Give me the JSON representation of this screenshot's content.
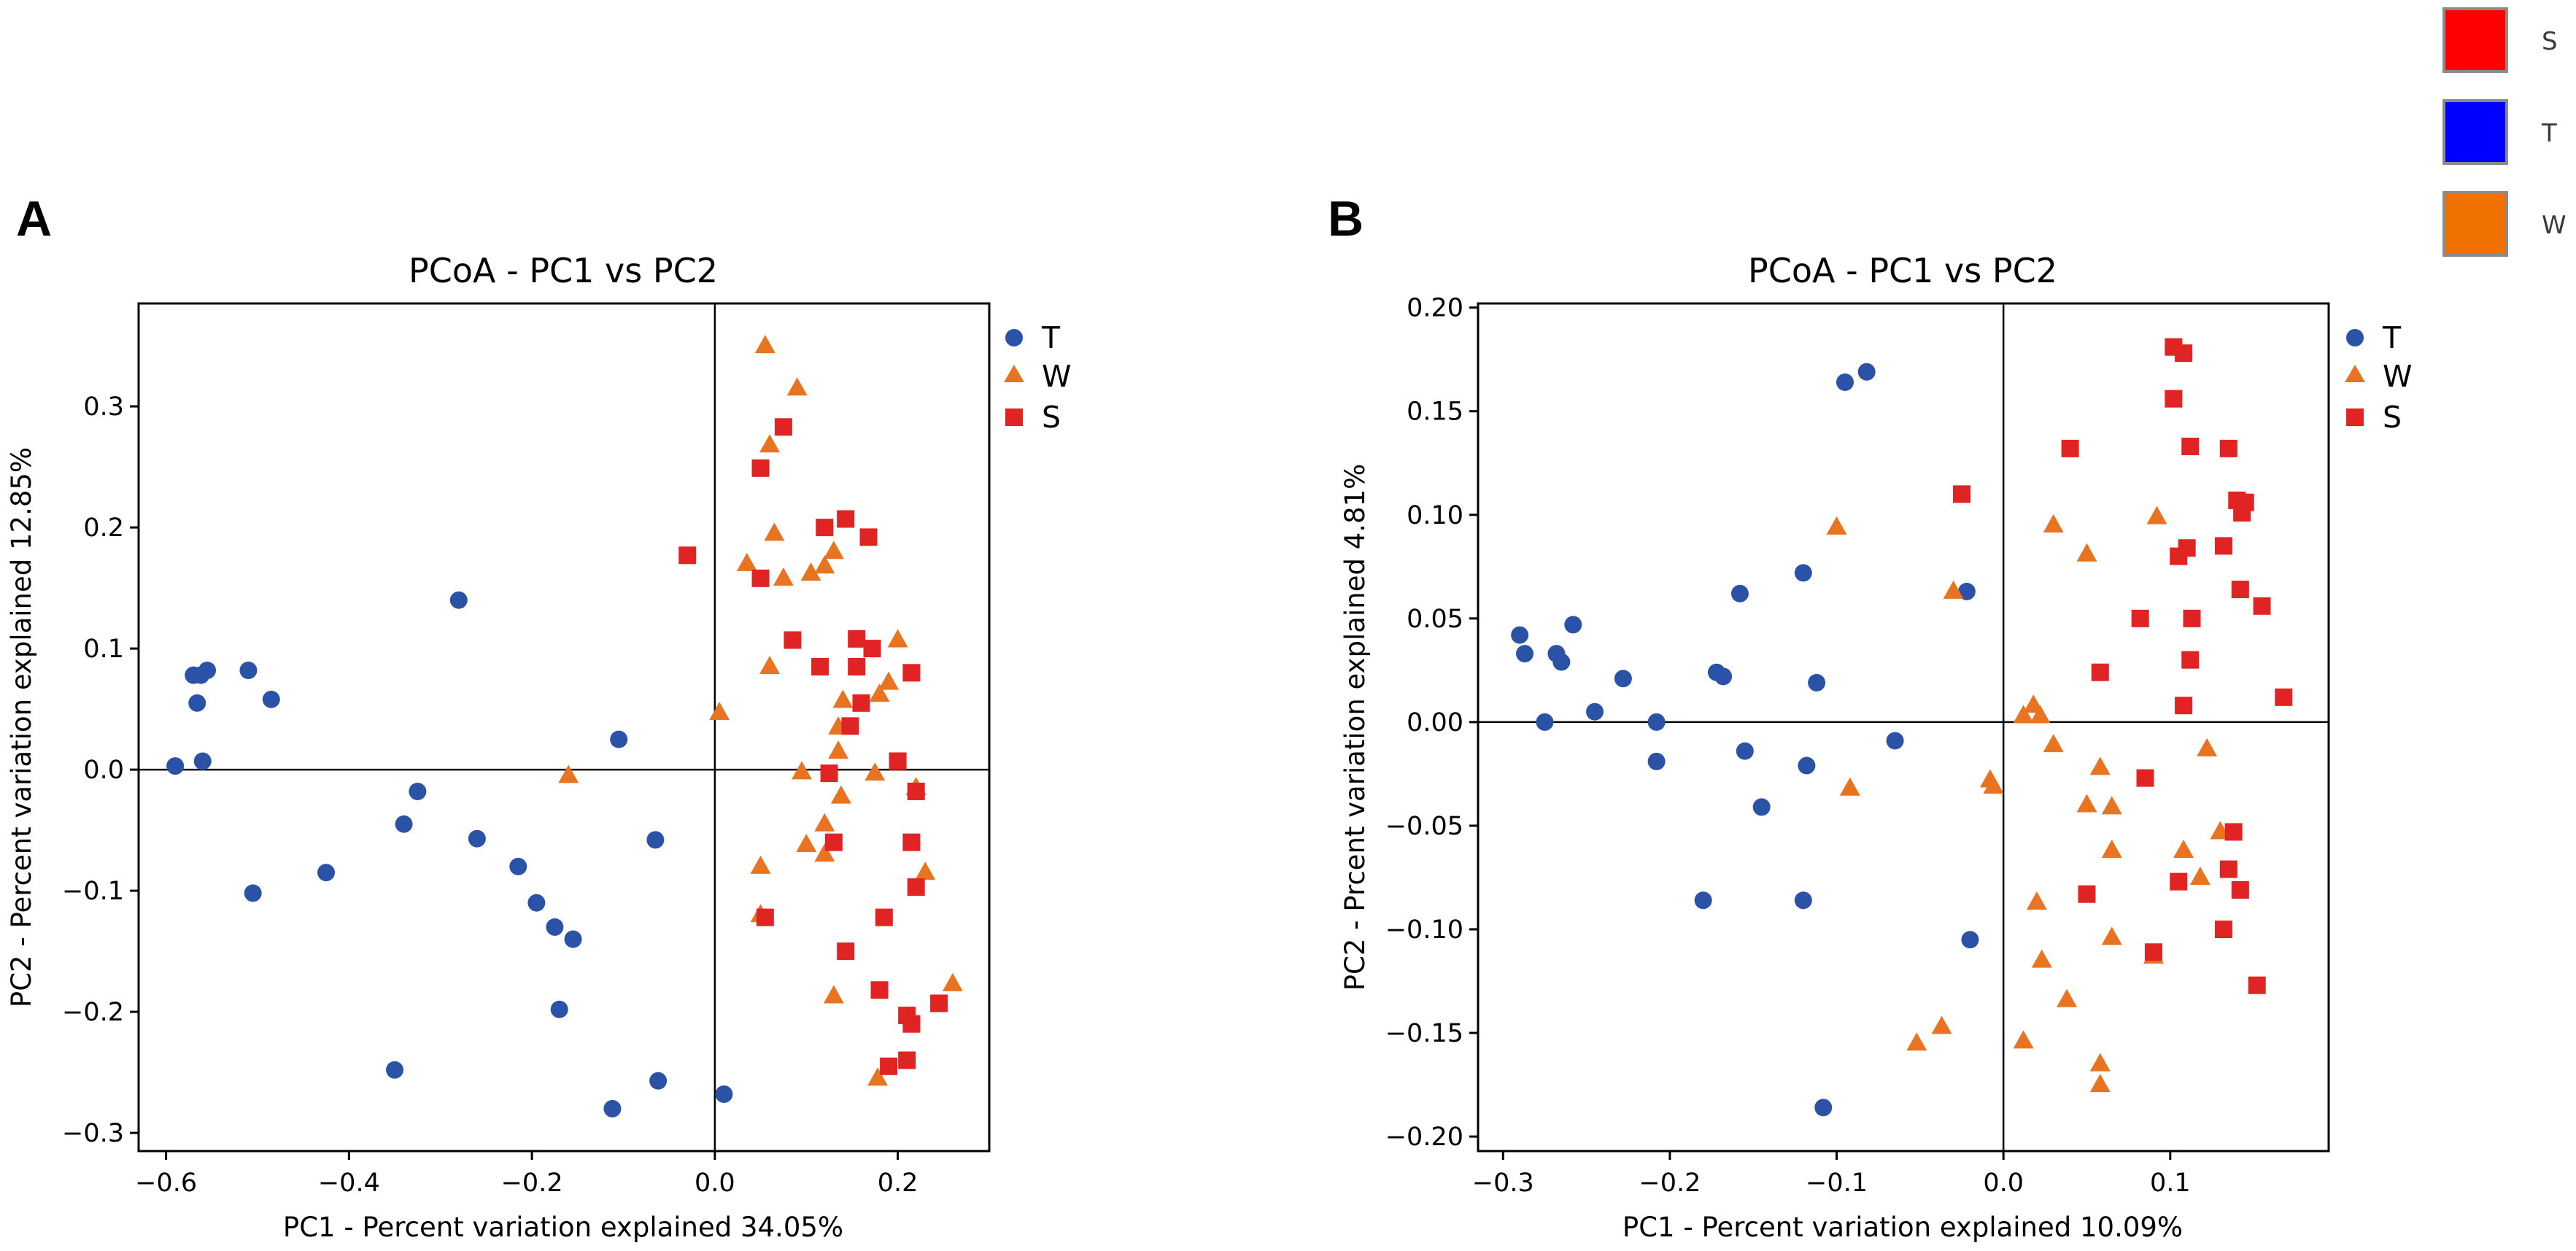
{
  "colors": {
    "T": "#2a52a6",
    "W": "#e87422",
    "S": "#e02424",
    "key_S": "#ff0000",
    "key_T": "#0000ff",
    "key_W": "#f07000"
  },
  "color_key": [
    {
      "label": "S",
      "color": "#ff0000"
    },
    {
      "label": "T",
      "color": "#0000ff"
    },
    {
      "label": "W",
      "color": "#f07000"
    }
  ],
  "chart_data": [
    {
      "panel": "A",
      "type": "scatter",
      "title": "PCoA - PC1 vs PC2",
      "xlabel": "PC1 - Percent variation explained 34.05%",
      "ylabel": "PC2 - Percent variation explained 12.85%",
      "xlim": [
        -0.63,
        0.3
      ],
      "ylim": [
        -0.315,
        0.385
      ],
      "xticks": [
        -0.6,
        -0.4,
        -0.2,
        0.0,
        0.2
      ],
      "xtick_labels": [
        "−0.6",
        "−0.4",
        "−0.2",
        "0.0",
        "0.2"
      ],
      "yticks": [
        -0.3,
        -0.2,
        -0.1,
        0.0,
        0.1,
        0.2,
        0.3
      ],
      "ytick_labels": [
        "−0.3",
        "−0.2",
        "−0.1",
        "0.0",
        "0.1",
        "0.2",
        "0.3"
      ],
      "legend": [
        "T",
        "W",
        "S"
      ],
      "legend_position": "outside-right",
      "series": [
        {
          "name": "T",
          "marker": "circle",
          "points": [
            [
              -0.59,
              0.003
            ],
            [
              -0.57,
              0.078
            ],
            [
              -0.562,
              0.078
            ],
            [
              -0.566,
              0.055
            ],
            [
              -0.555,
              0.082
            ],
            [
              -0.56,
              0.007
            ],
            [
              -0.51,
              0.082
            ],
            [
              -0.485,
              0.058
            ],
            [
              -0.505,
              -0.102
            ],
            [
              -0.425,
              -0.085
            ],
            [
              -0.28,
              0.14
            ],
            [
              -0.34,
              -0.045
            ],
            [
              -0.325,
              -0.018
            ],
            [
              -0.26,
              -0.057
            ],
            [
              -0.215,
              -0.08
            ],
            [
              -0.195,
              -0.11
            ],
            [
              -0.175,
              -0.13
            ],
            [
              -0.155,
              -0.14
            ],
            [
              -0.17,
              -0.198
            ],
            [
              -0.105,
              0.025
            ],
            [
              -0.065,
              -0.058
            ],
            [
              -0.35,
              -0.248
            ],
            [
              -0.062,
              -0.257
            ],
            [
              -0.112,
              -0.28
            ],
            [
              0.01,
              -0.268
            ]
          ]
        },
        {
          "name": "W",
          "marker": "triangle",
          "points": [
            [
              0.055,
              0.35
            ],
            [
              0.09,
              0.315
            ],
            [
              0.06,
              0.268
            ],
            [
              0.065,
              0.195
            ],
            [
              0.035,
              0.17
            ],
            [
              0.075,
              0.158
            ],
            [
              0.105,
              0.162
            ],
            [
              0.12,
              0.168
            ],
            [
              0.13,
              0.18
            ],
            [
              0.2,
              0.107
            ],
            [
              0.19,
              0.072
            ],
            [
              0.18,
              0.062
            ],
            [
              0.14,
              0.057
            ],
            [
              0.135,
              0.035
            ],
            [
              0.005,
              0.047
            ],
            [
              0.06,
              0.085
            ],
            [
              0.135,
              0.015
            ],
            [
              0.095,
              -0.002
            ],
            [
              0.175,
              -0.003
            ],
            [
              0.22,
              -0.015
            ],
            [
              0.138,
              -0.022
            ],
            [
              0.12,
              -0.045
            ],
            [
              0.1,
              -0.062
            ],
            [
              0.12,
              -0.07
            ],
            [
              0.05,
              -0.08
            ],
            [
              0.23,
              -0.085
            ],
            [
              0.05,
              -0.12
            ],
            [
              -0.16,
              -0.005
            ],
            [
              0.13,
              -0.187
            ],
            [
              0.26,
              -0.177
            ],
            [
              0.178,
              -0.255
            ]
          ]
        },
        {
          "name": "S",
          "marker": "square",
          "points": [
            [
              -0.03,
              0.177
            ],
            [
              0.075,
              0.283
            ],
            [
              0.05,
              0.249
            ],
            [
              0.12,
              0.2
            ],
            [
              0.143,
              0.207
            ],
            [
              0.168,
              0.192
            ],
            [
              0.05,
              0.158
            ],
            [
              0.085,
              0.107
            ],
            [
              0.155,
              0.108
            ],
            [
              0.172,
              0.1
            ],
            [
              0.155,
              0.085
            ],
            [
              0.115,
              0.085
            ],
            [
              0.215,
              0.08
            ],
            [
              0.16,
              0.055
            ],
            [
              0.148,
              0.036
            ],
            [
              0.2,
              0.007
            ],
            [
              0.125,
              -0.003
            ],
            [
              0.22,
              -0.018
            ],
            [
              0.13,
              -0.06
            ],
            [
              0.215,
              -0.06
            ],
            [
              0.22,
              -0.097
            ],
            [
              0.185,
              -0.122
            ],
            [
              0.055,
              -0.122
            ],
            [
              0.143,
              -0.15
            ],
            [
              0.18,
              -0.182
            ],
            [
              0.245,
              -0.193
            ],
            [
              0.21,
              -0.203
            ],
            [
              0.215,
              -0.21
            ],
            [
              0.19,
              -0.245
            ],
            [
              0.21,
              -0.24
            ]
          ]
        }
      ]
    },
    {
      "panel": "B",
      "type": "scatter",
      "title": "PCoA - PC1 vs PC2",
      "xlabel": "PC1 - Percent variation explained 10.09%",
      "ylabel": "PC2 - Prcent variation explained 4.81%",
      "xlim": [
        -0.315,
        0.195
      ],
      "ylim": [
        -0.207,
        0.202
      ],
      "xticks": [
        -0.3,
        -0.2,
        -0.1,
        0.0,
        0.1
      ],
      "xtick_labels": [
        "−0.3",
        "−0.2",
        "−0.1",
        "0.0",
        "0.1"
      ],
      "yticks": [
        -0.2,
        -0.15,
        -0.1,
        -0.05,
        0.0,
        0.05,
        0.1,
        0.15,
        0.2
      ],
      "ytick_labels": [
        "−0.20",
        "−0.15",
        "−0.10",
        "−0.05",
        "0.00",
        "0.05",
        "0.10",
        "0.15",
        "0.20"
      ],
      "legend": [
        "T",
        "W",
        "S"
      ],
      "legend_position": "outside-right",
      "series": [
        {
          "name": "T",
          "marker": "circle",
          "points": [
            [
              -0.29,
              0.042
            ],
            [
              -0.287,
              0.033
            ],
            [
              -0.268,
              0.033
            ],
            [
              -0.265,
              0.029
            ],
            [
              -0.258,
              0.047
            ],
            [
              -0.275,
              0.0
            ],
            [
              -0.245,
              0.005
            ],
            [
              -0.228,
              0.021
            ],
            [
              -0.208,
              0.0
            ],
            [
              -0.208,
              -0.019
            ],
            [
              -0.172,
              0.024
            ],
            [
              -0.168,
              0.022
            ],
            [
              -0.158,
              0.062
            ],
            [
              -0.155,
              -0.014
            ],
            [
              -0.145,
              -0.041
            ],
            [
              -0.18,
              -0.086
            ],
            [
              -0.12,
              0.072
            ],
            [
              -0.118,
              -0.021
            ],
            [
              -0.12,
              -0.086
            ],
            [
              -0.112,
              0.019
            ],
            [
              -0.065,
              -0.009
            ],
            [
              -0.022,
              0.063
            ],
            [
              -0.02,
              -0.105
            ],
            [
              -0.108,
              -0.186
            ],
            [
              -0.095,
              0.164
            ],
            [
              -0.082,
              0.169
            ]
          ]
        },
        {
          "name": "W",
          "marker": "triangle",
          "points": [
            [
              -0.1,
              0.094
            ],
            [
              -0.03,
              0.063
            ],
            [
              -0.092,
              -0.032
            ],
            [
              -0.008,
              -0.028
            ],
            [
              -0.006,
              -0.031
            ],
            [
              0.012,
              0.003
            ],
            [
              0.018,
              0.008
            ],
            [
              0.022,
              0.003
            ],
            [
              0.03,
              -0.011
            ],
            [
              0.03,
              0.095
            ],
            [
              0.05,
              0.081
            ],
            [
              0.058,
              -0.022
            ],
            [
              0.05,
              -0.04
            ],
            [
              0.065,
              -0.041
            ],
            [
              0.092,
              0.099
            ],
            [
              0.122,
              -0.013
            ],
            [
              0.108,
              -0.062
            ],
            [
              0.065,
              -0.062
            ],
            [
              0.13,
              -0.053
            ],
            [
              0.118,
              -0.075
            ],
            [
              0.02,
              -0.087
            ],
            [
              0.023,
              -0.115
            ],
            [
              0.065,
              -0.104
            ],
            [
              0.09,
              -0.113
            ],
            [
              -0.037,
              -0.147
            ],
            [
              -0.052,
              -0.155
            ],
            [
              0.012,
              -0.154
            ],
            [
              0.038,
              -0.134
            ],
            [
              0.058,
              -0.165
            ],
            [
              0.058,
              -0.175
            ]
          ]
        },
        {
          "name": "S",
          "marker": "square",
          "points": [
            [
              -0.025,
              0.11
            ],
            [
              0.04,
              0.132
            ],
            [
              0.102,
              0.181
            ],
            [
              0.108,
              0.178
            ],
            [
              0.102,
              0.156
            ],
            [
              0.112,
              0.133
            ],
            [
              0.135,
              0.132
            ],
            [
              0.14,
              0.107
            ],
            [
              0.145,
              0.106
            ],
            [
              0.143,
              0.101
            ],
            [
              0.11,
              0.084
            ],
            [
              0.105,
              0.08
            ],
            [
              0.132,
              0.085
            ],
            [
              0.142,
              0.064
            ],
            [
              0.155,
              0.056
            ],
            [
              0.113,
              0.05
            ],
            [
              0.082,
              0.05
            ],
            [
              0.058,
              0.024
            ],
            [
              0.112,
              0.03
            ],
            [
              0.108,
              0.008
            ],
            [
              0.168,
              0.012
            ],
            [
              0.085,
              -0.027
            ],
            [
              0.138,
              -0.053
            ],
            [
              0.135,
              -0.071
            ],
            [
              0.105,
              -0.077
            ],
            [
              0.142,
              -0.081
            ],
            [
              0.05,
              -0.083
            ],
            [
              0.09,
              -0.111
            ],
            [
              0.132,
              -0.1
            ],
            [
              0.152,
              -0.127
            ]
          ]
        }
      ]
    }
  ]
}
